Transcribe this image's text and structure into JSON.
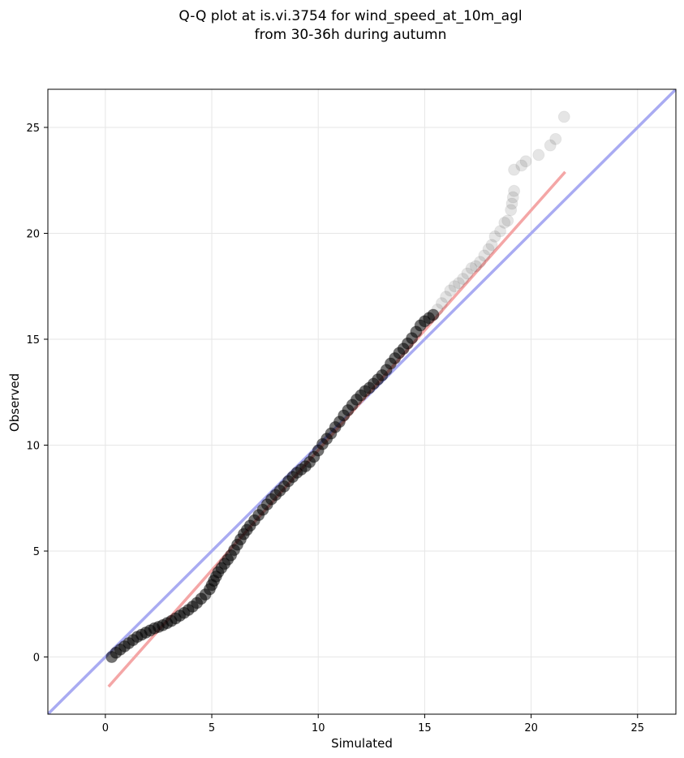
{
  "chart_data": {
    "type": "scatter",
    "title": "Q-Q plot at is.vi.3754 for wind_speed_at_10m_agl",
    "subtitle": "from 30-36h during autumn",
    "xlabel": "Simulated",
    "ylabel": "Observed",
    "xlim": [
      -2.7,
      26.8
    ],
    "ylim": [
      -2.7,
      26.8
    ],
    "x_ticks": [
      0,
      5,
      10,
      15,
      20,
      25
    ],
    "y_ticks": [
      0,
      5,
      10,
      15,
      20,
      25
    ],
    "x_tick_labels": [
      "0",
      "5",
      "10",
      "15",
      "20",
      "25"
    ],
    "y_tick_labels": [
      "0",
      "5",
      "10",
      "15",
      "20",
      "25"
    ],
    "grid": true,
    "colors": {
      "points": "#000000",
      "identity_line": "#a9abf2",
      "fit_line": "#f4a6a6",
      "grid": "#e6e6e6"
    },
    "identity_line": {
      "x": [
        -2.7,
        26.8
      ],
      "y": [
        -2.7,
        26.8
      ]
    },
    "fit_line": {
      "x": [
        0.15,
        21.6
      ],
      "y": [
        -1.4,
        22.9
      ]
    },
    "series": [
      {
        "points": [
          [
            0.3,
            0.0
          ],
          [
            0.5,
            0.2
          ],
          [
            0.7,
            0.35
          ],
          [
            0.9,
            0.5
          ],
          [
            1.1,
            0.65
          ],
          [
            1.3,
            0.8
          ],
          [
            1.5,
            0.95
          ],
          [
            1.7,
            1.05
          ],
          [
            1.9,
            1.15
          ],
          [
            2.1,
            1.25
          ],
          [
            2.3,
            1.35
          ],
          [
            2.5,
            1.42
          ],
          [
            2.7,
            1.5
          ],
          [
            2.9,
            1.6
          ],
          [
            3.1,
            1.7
          ],
          [
            3.3,
            1.82
          ],
          [
            3.5,
            1.95
          ],
          [
            3.7,
            2.08
          ],
          [
            3.9,
            2.22
          ],
          [
            4.1,
            2.38
          ],
          [
            4.3,
            2.55
          ],
          [
            4.5,
            2.75
          ],
          [
            4.7,
            2.95
          ],
          [
            4.9,
            3.2
          ],
          [
            5.0,
            3.4
          ],
          [
            5.1,
            3.6
          ],
          [
            5.2,
            3.8
          ],
          [
            5.3,
            4.0
          ],
          [
            5.45,
            4.2
          ],
          [
            5.6,
            4.4
          ],
          [
            5.75,
            4.6
          ],
          [
            5.9,
            4.8
          ],
          [
            6.05,
            5.05
          ],
          [
            6.2,
            5.3
          ],
          [
            6.35,
            5.55
          ],
          [
            6.5,
            5.8
          ],
          [
            6.65,
            6.0
          ],
          [
            6.8,
            6.2
          ],
          [
            7.0,
            6.45
          ],
          [
            7.2,
            6.7
          ],
          [
            7.4,
            6.95
          ],
          [
            7.6,
            7.2
          ],
          [
            7.8,
            7.45
          ],
          [
            8.0,
            7.65
          ],
          [
            8.2,
            7.85
          ],
          [
            8.4,
            8.05
          ],
          [
            8.6,
            8.3
          ],
          [
            8.8,
            8.5
          ],
          [
            9.0,
            8.7
          ],
          [
            9.2,
            8.85
          ],
          [
            9.4,
            9.0
          ],
          [
            9.6,
            9.2
          ],
          [
            9.8,
            9.45
          ],
          [
            10.0,
            9.75
          ],
          [
            10.2,
            10.05
          ],
          [
            10.4,
            10.3
          ],
          [
            10.6,
            10.55
          ],
          [
            10.8,
            10.85
          ],
          [
            11.0,
            11.1
          ],
          [
            11.2,
            11.4
          ],
          [
            11.4,
            11.65
          ],
          [
            11.6,
            11.9
          ],
          [
            11.8,
            12.15
          ],
          [
            12.0,
            12.35
          ],
          [
            12.2,
            12.55
          ],
          [
            12.4,
            12.7
          ],
          [
            12.6,
            12.9
          ],
          [
            12.8,
            13.1
          ],
          [
            13.0,
            13.3
          ],
          [
            13.2,
            13.55
          ],
          [
            13.4,
            13.85
          ],
          [
            13.6,
            14.1
          ],
          [
            13.8,
            14.35
          ],
          [
            14.0,
            14.55
          ],
          [
            14.2,
            14.8
          ],
          [
            14.4,
            15.05
          ],
          [
            14.6,
            15.35
          ],
          [
            14.8,
            15.65
          ],
          [
            15.0,
            15.85
          ],
          [
            15.2,
            16.0
          ],
          [
            15.4,
            16.15
          ],
          [
            15.6,
            16.4
          ],
          [
            15.8,
            16.7
          ],
          [
            16.0,
            17.0
          ],
          [
            16.2,
            17.3
          ],
          [
            16.4,
            17.5
          ],
          [
            16.6,
            17.65
          ],
          [
            16.8,
            17.85
          ],
          [
            17.0,
            18.1
          ],
          [
            17.2,
            18.35
          ],
          [
            17.4,
            18.45
          ],
          [
            17.6,
            18.65
          ],
          [
            17.8,
            18.95
          ],
          [
            18.0,
            19.25
          ],
          [
            18.15,
            19.45
          ],
          [
            18.3,
            19.85
          ],
          [
            18.55,
            20.1
          ],
          [
            18.75,
            20.5
          ],
          [
            18.9,
            20.6
          ],
          [
            19.05,
            21.1
          ],
          [
            19.1,
            21.4
          ],
          [
            19.15,
            21.7
          ],
          [
            19.2,
            22.0
          ],
          [
            19.2,
            23.0
          ],
          [
            19.55,
            23.2
          ],
          [
            19.75,
            23.4
          ],
          [
            20.35,
            23.7
          ],
          [
            20.9,
            24.15
          ],
          [
            21.15,
            24.45
          ],
          [
            21.55,
            25.5
          ]
        ]
      }
    ]
  }
}
